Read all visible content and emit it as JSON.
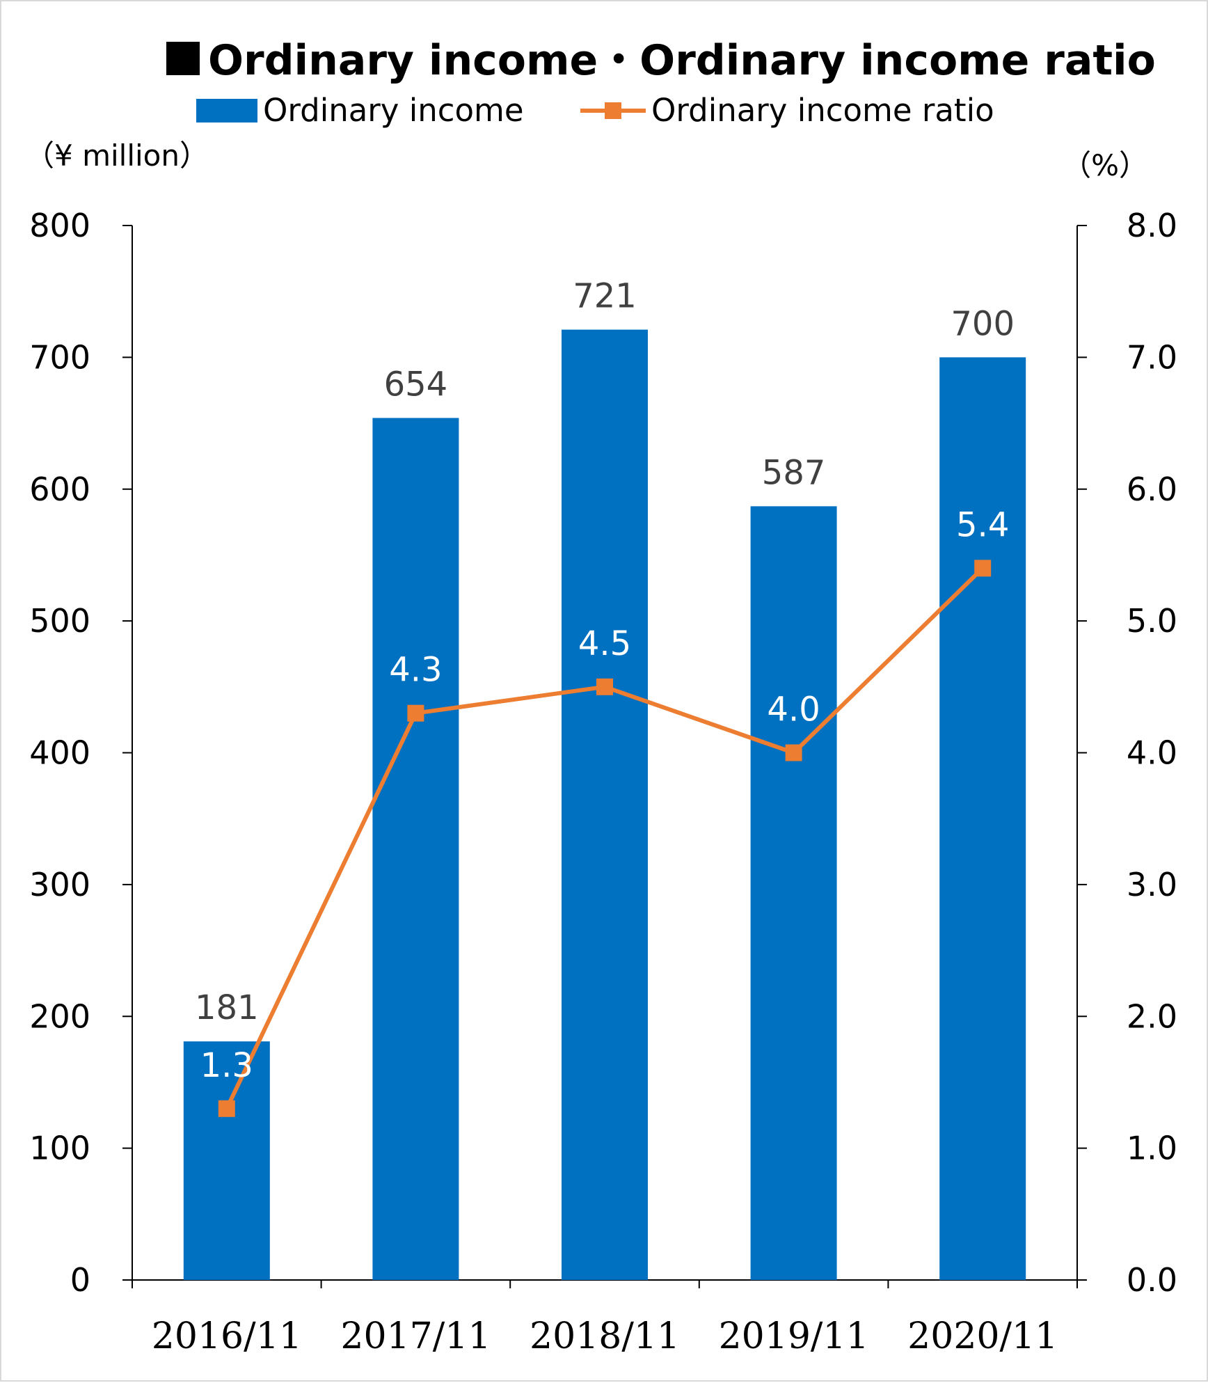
{
  "chart_data": {
    "type": "bar",
    "title": "Ordinary income・Ordinary income ratio",
    "categories": [
      "2016/11",
      "2017/11",
      "2018/11",
      "2019/11",
      "2020/11"
    ],
    "series": [
      {
        "name": "Ordinary income",
        "type": "bar",
        "axis": "left",
        "color": "#0070c0",
        "values": [
          181,
          654,
          721,
          587,
          700
        ],
        "labels": [
          "181",
          "654",
          "721",
          "587",
          "700"
        ]
      },
      {
        "name": "Ordinary income ratio",
        "type": "line",
        "axis": "right",
        "color": "#ed7d31",
        "marker": "square",
        "values": [
          1.3,
          4.3,
          4.5,
          4.0,
          5.4
        ],
        "labels": [
          "1.3",
          "4.3",
          "4.5",
          "4.0",
          "5.4"
        ]
      }
    ],
    "ylabel": "（¥ million）",
    "ylim": [
      0,
      800
    ],
    "yticks": [
      "0",
      "100",
      "200",
      "300",
      "400",
      "500",
      "600",
      "700",
      "800"
    ],
    "y2label": "（%）",
    "y2lim": [
      0,
      8
    ],
    "y2ticks": [
      "0.0",
      "1.0",
      "2.0",
      "3.0",
      "4.0",
      "5.0",
      "6.0",
      "7.0",
      "8.0"
    ],
    "legend_position": "top",
    "grid": false
  }
}
